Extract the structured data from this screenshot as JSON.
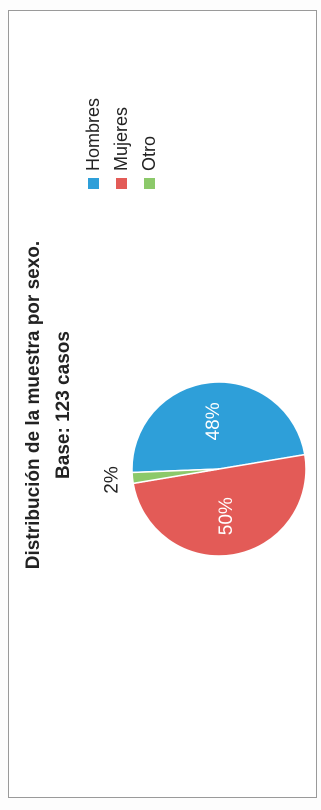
{
  "chart_data": {
    "type": "pie",
    "title": "Distribución de la muestra por sexo.",
    "subtitle": "Base: 123 casos",
    "categories": [
      "Hombres",
      "Mujeres",
      "Otro"
    ],
    "values": [
      48,
      50,
      2
    ],
    "value_labels": [
      "48%",
      "50%",
      "2%"
    ],
    "colors": [
      "#2e9fd9",
      "#e35b57",
      "#8cc96a"
    ],
    "legend": "right",
    "orientation": "rotated 90° counter-clockwise"
  }
}
